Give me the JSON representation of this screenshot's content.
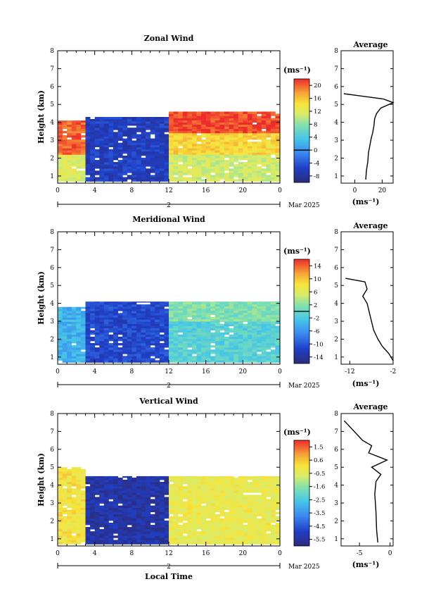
{
  "chart_data": [
    {
      "type": "heatmap",
      "title": "Zonal Wind",
      "ylabel": "Height (km)",
      "x_ticks": [
        "0",
        "4",
        "8",
        "12",
        "16",
        "20",
        "0"
      ],
      "y_ticks": [
        "1",
        "2",
        "3",
        "4",
        "5",
        "6",
        "7",
        "8"
      ],
      "xlim": [
        0,
        24
      ],
      "ylim": [
        0.6,
        8
      ],
      "date_marker": "2",
      "date_label": "Mar 2025",
      "colorbar": {
        "unit": "(ms⁻¹)",
        "ticks": [
          "20",
          "16",
          "12",
          "8",
          "4",
          "0",
          "-4",
          "-8"
        ],
        "min": -10,
        "max": 22,
        "zero_line": 0
      },
      "regions": [
        {
          "x": [
            0,
            3
          ],
          "y": [
            0.7,
            2.2
          ],
          "value": 12
        },
        {
          "x": [
            0,
            3
          ],
          "y": [
            2.2,
            4.1
          ],
          "value": 20
        },
        {
          "x": [
            3,
            12
          ],
          "y": [
            0.7,
            4.3
          ],
          "value": -6
        },
        {
          "x": [
            12,
            24
          ],
          "y": [
            0.7,
            2.2
          ],
          "value": 11
        },
        {
          "x": [
            12,
            24
          ],
          "y": [
            2.2,
            3.4
          ],
          "value": 15
        },
        {
          "x": [
            12,
            24
          ],
          "y": [
            3.4,
            4.6
          ],
          "value": 21
        }
      ],
      "profile": {
        "title": "Average",
        "x_ticks": [
          "0",
          "20"
        ],
        "xlim": [
          -10,
          28
        ],
        "unit": "(ms⁻¹)",
        "heights": [
          0.8,
          1.3,
          1.8,
          2.3,
          2.7,
          3.1,
          3.4,
          3.8,
          4.2,
          4.5,
          4.8,
          5.1,
          5.3,
          5.6
        ],
        "values": [
          8,
          8.5,
          9.5,
          10,
          11,
          12,
          13,
          14,
          14.5,
          16,
          19,
          28,
          21,
          -8
        ]
      }
    },
    {
      "type": "heatmap",
      "title": "Meridional Wind",
      "ylabel": "Height (km)",
      "x_ticks": [
        "0",
        "4",
        "8",
        "12",
        "16",
        "20",
        "0"
      ],
      "y_ticks": [
        "1",
        "2",
        "3",
        "4",
        "5",
        "6",
        "7",
        "8"
      ],
      "xlim": [
        0,
        24
      ],
      "ylim": [
        0.6,
        8
      ],
      "date_marker": "2",
      "date_label": "Mar 2025",
      "colorbar": {
        "unit": "(ms⁻¹)",
        "ticks": [
          "14",
          "10",
          "6",
          "2",
          "-2",
          "-6",
          "-10",
          "-14"
        ],
        "min": -16,
        "max": 16,
        "zero_line": 0
      },
      "regions": [
        {
          "x": [
            0,
            3
          ],
          "y": [
            0.7,
            3.8
          ],
          "value": -4
        },
        {
          "x": [
            3,
            12
          ],
          "y": [
            0.7,
            4.1
          ],
          "value": -11
        },
        {
          "x": [
            12,
            24
          ],
          "y": [
            0.7,
            3.0
          ],
          "value": -1
        },
        {
          "x": [
            12,
            24
          ],
          "y": [
            3.0,
            4.1
          ],
          "value": 1.5
        }
      ],
      "profile": {
        "title": "Average",
        "x_ticks": [
          "-12",
          "-2"
        ],
        "xlim": [
          -14,
          -2
        ],
        "unit": "(ms⁻¹)",
        "heights": [
          0.8,
          1.2,
          1.6,
          2.0,
          2.5,
          3.0,
          3.5,
          4.0,
          4.4,
          4.8,
          5.2,
          5.4
        ],
        "values": [
          -2,
          -3,
          -4.5,
          -5.5,
          -6.5,
          -7,
          -7.5,
          -8,
          -9,
          -8,
          -8.5,
          -13
        ]
      }
    },
    {
      "type": "heatmap",
      "title": "Vertical Wind",
      "ylabel": "Height (km)",
      "x_ticks": [
        "0",
        "4",
        "8",
        "12",
        "16",
        "20",
        "0"
      ],
      "y_ticks": [
        "1",
        "2",
        "3",
        "4",
        "5",
        "6",
        "7",
        "8"
      ],
      "xlim": [
        0,
        24
      ],
      "ylim": [
        0.6,
        8
      ],
      "date_marker": "2",
      "date_label": "Mar 2025",
      "xlabel": "Local Time",
      "colorbar": {
        "unit": "(ms⁻¹)",
        "ticks": [
          "1.5",
          "0.6",
          "-0.5",
          "-1.6",
          "-2.5",
          "-3.5",
          "-4.5",
          "-5.5"
        ],
        "min": -6,
        "max": 2
      },
      "regions": [
        {
          "x": [
            0,
            3
          ],
          "y": [
            0.7,
            5.0
          ],
          "value": 0
        },
        {
          "x": [
            3,
            12
          ],
          "y": [
            0.7,
            4.5
          ],
          "value": -5.4
        },
        {
          "x": [
            12,
            24
          ],
          "y": [
            0.7,
            4.5
          ],
          "value": -0.3
        }
      ],
      "profile": {
        "title": "Average",
        "x_ticks": [
          "-5",
          "0"
        ],
        "xlim": [
          -8,
          0.5
        ],
        "unit": "(ms⁻¹)",
        "heights": [
          0.8,
          1.5,
          2.5,
          3.5,
          4.2,
          4.6,
          5.0,
          5.4,
          5.8,
          6.2,
          6.5,
          7.6
        ],
        "values": [
          -2,
          -2.2,
          -2.3,
          -2.5,
          -2.3,
          -1.5,
          -3,
          -0.5,
          -3.5,
          -3,
          -4.5,
          -7.5
        ]
      }
    }
  ]
}
